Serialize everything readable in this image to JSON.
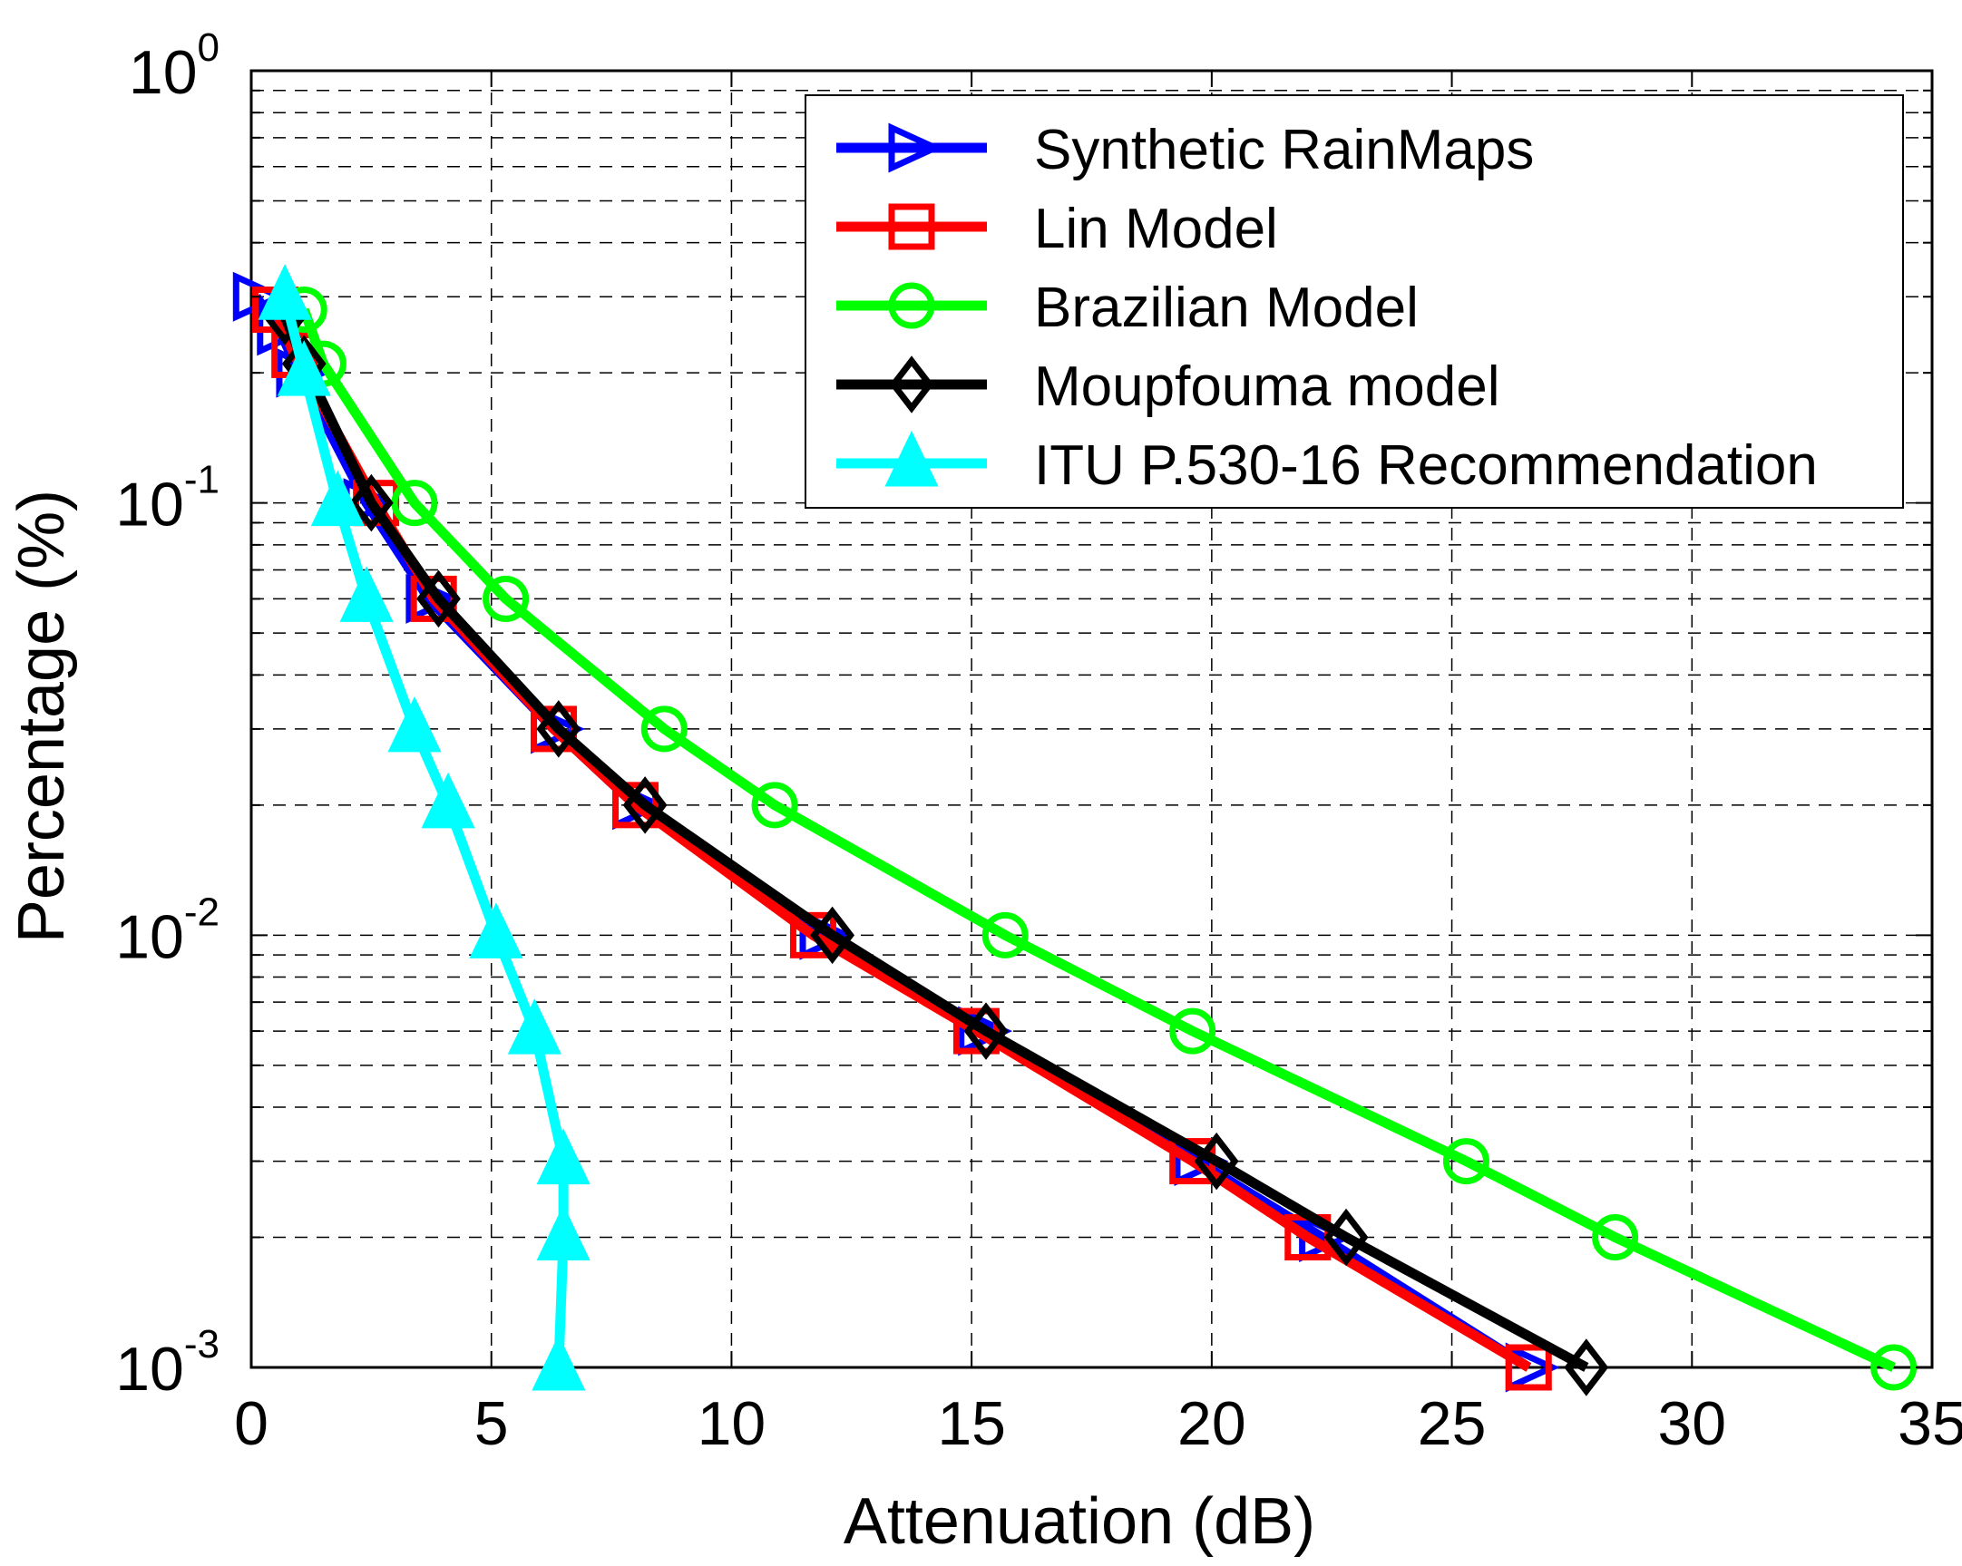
{
  "chart_data": {
    "type": "line",
    "title": "",
    "xlabel": "Attenuation (dB)",
    "ylabel": "Percentage (%)",
    "xlim": [
      0,
      35
    ],
    "ylim": [
      0.001,
      1
    ],
    "yscale": "log",
    "grid": true,
    "legend_position": "top-right",
    "x_ticks": [
      0,
      5,
      10,
      15,
      20,
      25,
      30,
      35
    ],
    "x_tick_labels": [
      "0",
      "5",
      "10",
      "15",
      "20",
      "25",
      "30",
      "35"
    ],
    "y_ticks": [
      {
        "value": 1,
        "base": "10",
        "exp": "0"
      },
      {
        "value": 0.1,
        "base": "10",
        "exp": "-1"
      },
      {
        "value": 0.01,
        "base": "10",
        "exp": "-2"
      },
      {
        "value": 0.001,
        "base": "10",
        "exp": "-3"
      }
    ],
    "series": [
      {
        "name": "Synthetic RainMaps",
        "color": "#0000ff",
        "marker": "triangle-right",
        "x": [
          0.1,
          0.6,
          1.0,
          2.4,
          3.7,
          6.3,
          8.0,
          11.9,
          15.2,
          19.7,
          22.3,
          26.6
        ],
        "y": [
          0.3,
          0.25,
          0.2,
          0.1,
          0.06,
          0.03,
          0.02,
          0.01,
          0.006,
          0.003,
          0.002,
          0.001
        ]
      },
      {
        "name": "Lin Model",
        "color": "#ff0000",
        "marker": "square",
        "x": [
          0.5,
          0.9,
          2.6,
          3.8,
          6.3,
          8.0,
          11.7,
          15.1,
          19.6,
          22.0,
          26.6
        ],
        "y": [
          0.28,
          0.22,
          0.1,
          0.06,
          0.03,
          0.02,
          0.01,
          0.006,
          0.003,
          0.002,
          0.001
        ]
      },
      {
        "name": "Brazilian Model",
        "color": "#00ff00",
        "marker": "circle",
        "x": [
          1.1,
          1.5,
          3.4,
          5.3,
          8.6,
          10.9,
          15.7,
          19.6,
          25.3,
          28.4,
          34.2
        ],
        "y": [
          0.28,
          0.21,
          0.1,
          0.06,
          0.03,
          0.02,
          0.01,
          0.006,
          0.003,
          0.002,
          0.001
        ]
      },
      {
        "name": "Moupfouma model",
        "color": "#000000",
        "marker": "diamond",
        "x": [
          0.7,
          1.1,
          2.5,
          3.9,
          6.4,
          8.2,
          12.1,
          15.3,
          20.1,
          22.8,
          27.8
        ],
        "y": [
          0.27,
          0.21,
          0.1,
          0.06,
          0.03,
          0.02,
          0.01,
          0.006,
          0.003,
          0.002,
          0.001
        ]
      },
      {
        "name": "ITU P.530-16 Recommendation",
        "color": "#00ffff",
        "marker": "triangle-up",
        "x": [
          0.7,
          1.1,
          1.8,
          2.4,
          3.4,
          4.1,
          5.1,
          5.9,
          6.5,
          6.5,
          6.4
        ],
        "y": [
          0.3,
          0.2,
          0.1,
          0.06,
          0.03,
          0.02,
          0.01,
          0.006,
          0.003,
          0.002,
          0.001
        ]
      }
    ]
  }
}
